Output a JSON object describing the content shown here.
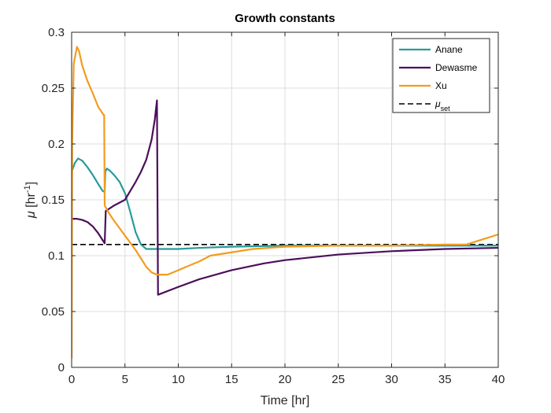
{
  "chart_data": {
    "type": "line",
    "title": "Growth constants",
    "xlabel": "Time [hr]",
    "ylabel": "μ [hr⁻¹]",
    "xlim": [
      0,
      40
    ],
    "ylim": [
      0,
      0.3
    ],
    "xticks": [
      "0",
      "5",
      "10",
      "15",
      "20",
      "25",
      "30",
      "35",
      "40"
    ],
    "yticks": [
      "0",
      "0.05",
      "0.1",
      "0.15",
      "0.2",
      "0.25",
      "0.3"
    ],
    "grid": true,
    "legend_position": "top-right",
    "series": [
      {
        "name": "Anane",
        "color": "#2a9a9a",
        "points": [
          [
            0,
            0.175
          ],
          [
            0.3,
            0.183
          ],
          [
            0.6,
            0.187
          ],
          [
            1.0,
            0.185
          ],
          [
            1.5,
            0.179
          ],
          [
            2.0,
            0.172
          ],
          [
            2.5,
            0.164
          ],
          [
            2.9,
            0.158
          ],
          [
            3.1,
            0.157
          ],
          [
            3.15,
            0.175
          ],
          [
            3.3,
            0.178
          ],
          [
            3.6,
            0.176
          ],
          [
            4.0,
            0.172
          ],
          [
            4.5,
            0.166
          ],
          [
            5.0,
            0.156
          ],
          [
            5.5,
            0.139
          ],
          [
            6.0,
            0.121
          ],
          [
            6.5,
            0.11
          ],
          [
            7.0,
            0.106
          ],
          [
            8.0,
            0.106
          ],
          [
            10.0,
            0.106
          ],
          [
            12.0,
            0.107
          ],
          [
            15.0,
            0.108
          ],
          [
            20.0,
            0.109
          ],
          [
            25.0,
            0.109
          ],
          [
            30.0,
            0.109
          ],
          [
            35.0,
            0.109
          ],
          [
            40.0,
            0.109
          ]
        ]
      },
      {
        "name": "Dewasme",
        "color": "#4b0f5a",
        "points": [
          [
            0,
            0.133
          ],
          [
            0.5,
            0.133
          ],
          [
            1.0,
            0.132
          ],
          [
            1.5,
            0.13
          ],
          [
            2.0,
            0.126
          ],
          [
            2.5,
            0.12
          ],
          [
            3.1,
            0.111
          ],
          [
            3.2,
            0.14
          ],
          [
            4.0,
            0.145
          ],
          [
            5.0,
            0.15
          ],
          [
            5.5,
            0.158
          ],
          [
            6.0,
            0.166
          ],
          [
            6.5,
            0.175
          ],
          [
            7.0,
            0.186
          ],
          [
            7.5,
            0.204
          ],
          [
            7.8,
            0.222
          ],
          [
            8.0,
            0.239
          ],
          [
            8.1,
            0.065
          ],
          [
            10.0,
            0.072
          ],
          [
            12.0,
            0.079
          ],
          [
            15.0,
            0.087
          ],
          [
            18.0,
            0.093
          ],
          [
            20.0,
            0.096
          ],
          [
            25.0,
            0.101
          ],
          [
            30.0,
            0.104
          ],
          [
            35.0,
            0.106
          ],
          [
            40.0,
            0.107
          ]
        ]
      },
      {
        "name": "Xu",
        "color": "#f39c1f",
        "points": [
          [
            0,
            0.008
          ],
          [
            0.05,
            0.2
          ],
          [
            0.2,
            0.272
          ],
          [
            0.5,
            0.287
          ],
          [
            0.7,
            0.283
          ],
          [
            1.0,
            0.27
          ],
          [
            1.5,
            0.256
          ],
          [
            2.0,
            0.245
          ],
          [
            2.5,
            0.233
          ],
          [
            3.0,
            0.226
          ],
          [
            3.05,
            0.226
          ],
          [
            3.1,
            0.145
          ],
          [
            3.5,
            0.138
          ],
          [
            4.0,
            0.131
          ],
          [
            5.0,
            0.118
          ],
          [
            6.0,
            0.105
          ],
          [
            7.0,
            0.09
          ],
          [
            7.5,
            0.085
          ],
          [
            8.0,
            0.083
          ],
          [
            9.0,
            0.083
          ],
          [
            10.0,
            0.087
          ],
          [
            11.0,
            0.091
          ],
          [
            12.0,
            0.095
          ],
          [
            13.0,
            0.1
          ],
          [
            15.0,
            0.103
          ],
          [
            17.0,
            0.106
          ],
          [
            20.0,
            0.108
          ],
          [
            25.0,
            0.109
          ],
          [
            30.0,
            0.109
          ],
          [
            35.0,
            0.11
          ],
          [
            37.0,
            0.11
          ],
          [
            38.0,
            0.113
          ],
          [
            40.0,
            0.119
          ]
        ]
      },
      {
        "name": "μset",
        "color": "#000000",
        "dash": true,
        "points": [
          [
            0,
            0.11
          ],
          [
            40,
            0.11
          ]
        ]
      }
    ]
  }
}
